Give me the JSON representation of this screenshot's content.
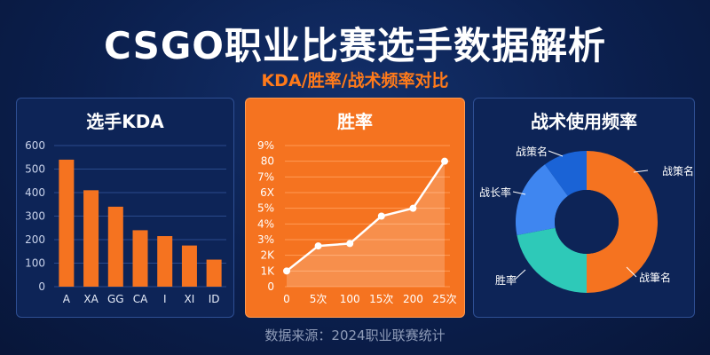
{
  "header": {
    "title": "CSGO职业比赛选手数据解析",
    "subtitle": "KDA/胜率/战术频率对比"
  },
  "footer": {
    "source": "数据来源：2024职业联赛统计"
  },
  "colors": {
    "orange": "#f57320",
    "blue": "#1a63d6",
    "light_blue": "#3f86f0",
    "teal": "#2ec9b8",
    "background": "#0b1f4d"
  },
  "chart_data": [
    {
      "type": "bar",
      "title": "选手KDA",
      "categories": [
        "A",
        "XA",
        "GG",
        "CA",
        "I",
        "XI",
        "ID"
      ],
      "values": [
        540,
        410,
        340,
        240,
        215,
        175,
        115
      ],
      "yticks": [
        "0",
        "100",
        "200",
        "300",
        "400",
        "500",
        "600"
      ],
      "ylim": [
        0,
        600
      ],
      "grid": true
    },
    {
      "type": "area",
      "title": "胜率",
      "xticks": [
        "0",
        "5次",
        "100",
        "15次",
        "200",
        "25次"
      ],
      "yticks": [
        "0",
        "1K",
        "2K",
        "3%",
        "4%",
        "5%",
        "6X",
        "7%",
        "80",
        "9%"
      ],
      "values": [
        1.0,
        2.6,
        2.75,
        4.5,
        5.0,
        8.0
      ],
      "ylim": [
        0,
        9
      ]
    },
    {
      "type": "pie",
      "title": "战术使用频率",
      "labels": [
        "战策名",
        "战筆名",
        "胜率",
        "战长率",
        "战策名"
      ],
      "values": [
        50,
        22,
        0,
        18,
        10
      ],
      "colors": [
        "#f57320",
        "#f57320",
        "#2ec9b8",
        "#3f86f0",
        "#1a63d6"
      ]
    }
  ]
}
